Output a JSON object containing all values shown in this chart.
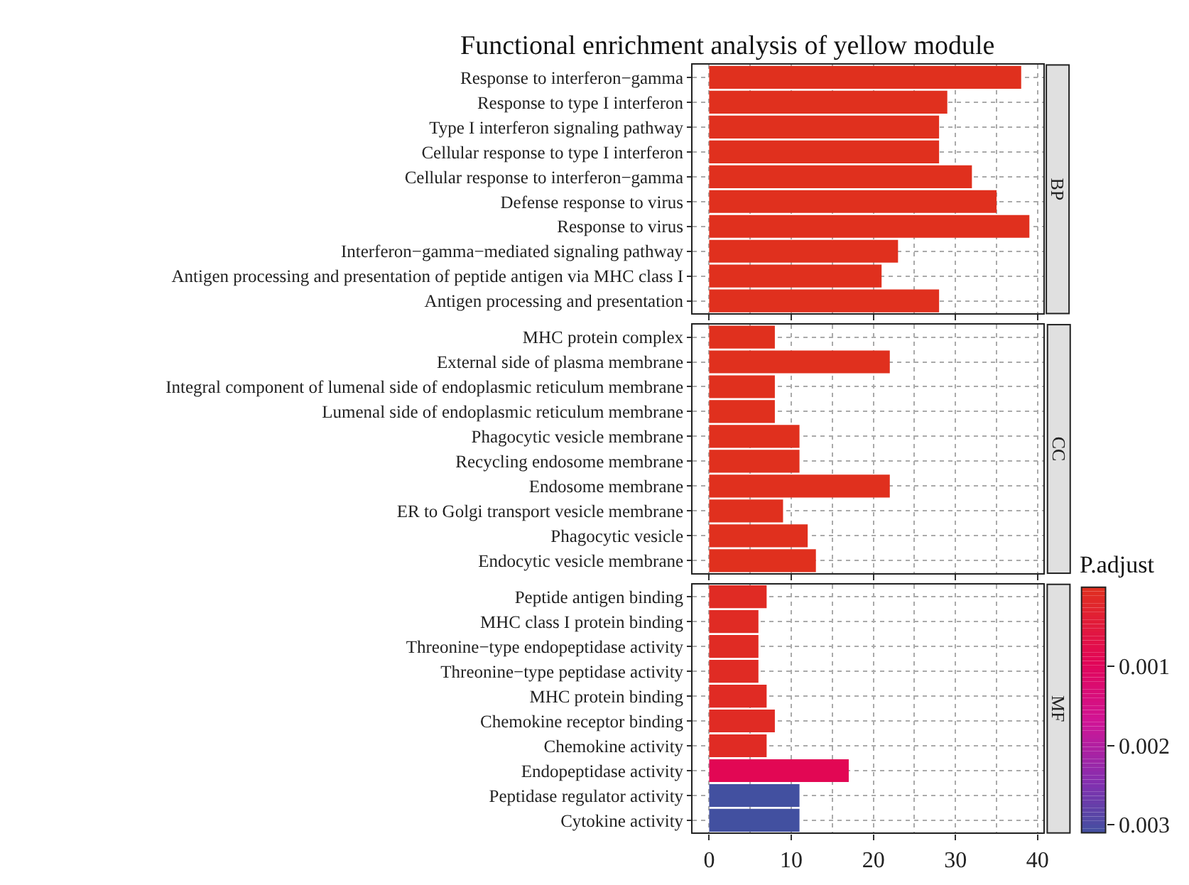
{
  "chart_data": [
    {
      "type": "bar",
      "orientation": "horizontal",
      "title": "Functional enrichment analysis of yellow module",
      "annotations": [
        "BP"
      ],
      "categories": [
        "Response to interferon−gamma",
        "Response to type I interferon",
        "Type I interferon signaling pathway",
        "Cellular response to type I interferon",
        "Cellular response to interferon−gamma",
        "Defense response to virus",
        "Response to virus",
        "Interferon−gamma−mediated signaling pathway",
        "Antigen processing and presentation of peptide antigen via MHC class I",
        "Antigen processing and presentation"
      ],
      "values": [
        38,
        29,
        28,
        28,
        32,
        35,
        39,
        23,
        21,
        28
      ],
      "color": "#e0301e",
      "xlim": [
        -2.0,
        40.7
      ],
      "xticks": [
        0,
        10,
        20,
        30,
        40
      ],
      "grid": true,
      "tick_labels": "y"
    },
    {
      "type": "bar",
      "orientation": "horizontal",
      "annotations": [
        "CC"
      ],
      "categories": [
        "MHC protein complex",
        "External side of plasma membrane",
        "Integral component of lumenal side of endoplasmic reticulum membrane",
        "Lumenal side of endoplasmic reticulum membrane",
        "Phagocytic vesicle membrane",
        "Recycling endosome membrane",
        "Endosome membrane",
        "ER to Golgi transport vesicle membrane",
        "Phagocytic vesicle",
        "Endocytic vesicle membrane"
      ],
      "values": [
        8,
        22,
        8,
        8,
        11,
        11,
        22,
        9,
        12,
        13
      ],
      "color": "#e0301e",
      "xlim": [
        -2.0,
        40.7
      ],
      "xticks": [
        0,
        10,
        20,
        30,
        40
      ],
      "grid": true,
      "tick_labels": "y"
    },
    {
      "type": "bar",
      "orientation": "horizontal",
      "annotations": [
        "MF"
      ],
      "categories": [
        "Peptide antigen binding",
        "MHC class I protein binding",
        "Threonine−type endopeptidase activity",
        "Threonine−type peptidase activity",
        "MHC protein binding",
        "Chemokine receptor binding",
        "Chemokine activity",
        "Endopeptidase activity",
        "Peptidase regulator activity",
        "Cytokine activity"
      ],
      "values": [
        7,
        6,
        6,
        6,
        7,
        8,
        7,
        17,
        11,
        11
      ],
      "cvalues": [
        0.0001,
        0.0001,
        0.0001,
        0.0001,
        0.0001,
        0.0001,
        0.0001,
        0.0009,
        0.0031,
        0.0031
      ],
      "clabel": "P.adjust",
      "clim": [
        0,
        0.0031
      ],
      "cticks": [
        0.001,
        0.002,
        0.003
      ],
      "xlim": [
        -2.0,
        40.7
      ],
      "xticks": [
        0,
        10,
        20,
        30,
        40
      ],
      "grid": true
    }
  ]
}
